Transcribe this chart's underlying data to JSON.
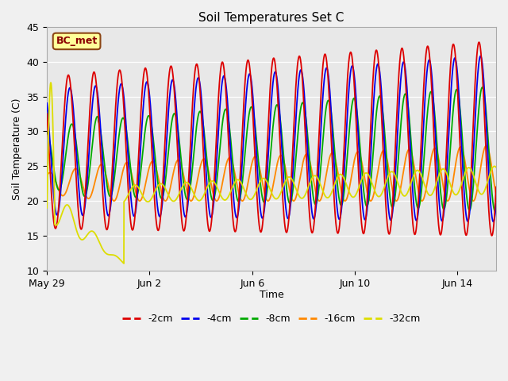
{
  "title": "Soil Temperatures Set C",
  "xlabel": "Time",
  "ylabel": "Soil Temperature (C)",
  "ylim": [
    10,
    45
  ],
  "background_color": "#f0f0f0",
  "plot_bg_color": "#e8e8e8",
  "annotation_text": "BC_met",
  "annotation_bg": "#ffff99",
  "annotation_border": "#8B4513",
  "annotation_text_color": "#8B0000",
  "x_ticks_labels": [
    "May 29",
    "Jun 2",
    "Jun 6",
    "Jun 10",
    "Jun 14"
  ],
  "x_ticks_days": [
    0,
    4,
    8,
    12,
    16
  ],
  "total_days": 17.5,
  "legend_colors": [
    "#dd0000",
    "#0000ee",
    "#00aa00",
    "#ff8800",
    "#dddd00"
  ],
  "legend_labels": [
    "-2cm",
    "-4cm",
    "-8cm",
    "-16cm",
    "-32cm"
  ]
}
